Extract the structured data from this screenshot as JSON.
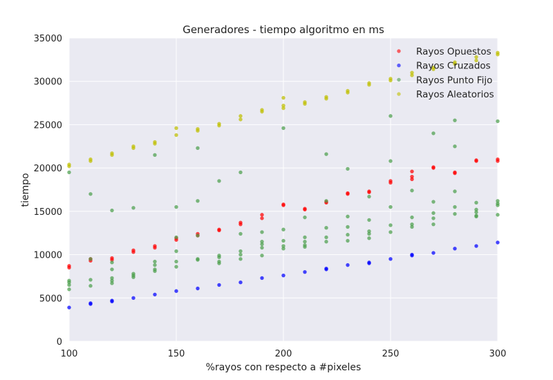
{
  "chart_data": {
    "type": "scatter",
    "title": "Generadores - tiempo algoritmo en ms",
    "xlabel": "%rayos con respecto a #pixeles",
    "ylabel": "tiempo",
    "xlim": [
      100,
      300
    ],
    "ylim": [
      0,
      35000
    ],
    "xticks": [
      100,
      150,
      200,
      250,
      300
    ],
    "yticks": [
      0,
      5000,
      10000,
      15000,
      20000,
      25000,
      30000,
      35000
    ],
    "grid": true,
    "legend_position": "top-right",
    "series": [
      {
        "name": "Rayos Opuestos",
        "color": "#ff0000",
        "points": [
          [
            100,
            8500
          ],
          [
            100,
            8700
          ],
          [
            110,
            9300
          ],
          [
            110,
            9500
          ],
          [
            120,
            9400
          ],
          [
            120,
            9600
          ],
          [
            130,
            10300
          ],
          [
            130,
            10500
          ],
          [
            140,
            10800
          ],
          [
            140,
            11000
          ],
          [
            150,
            11700
          ],
          [
            150,
            11900
          ],
          [
            160,
            12200
          ],
          [
            160,
            12400
          ],
          [
            170,
            12800
          ],
          [
            170,
            12900
          ],
          [
            180,
            13500
          ],
          [
            180,
            13700
          ],
          [
            190,
            14200
          ],
          [
            190,
            14600
          ],
          [
            200,
            15700
          ],
          [
            200,
            15800
          ],
          [
            210,
            15200
          ],
          [
            210,
            15300
          ],
          [
            220,
            16000
          ],
          [
            220,
            16100
          ],
          [
            230,
            17000
          ],
          [
            230,
            17100
          ],
          [
            240,
            17200
          ],
          [
            240,
            17300
          ],
          [
            250,
            18300
          ],
          [
            250,
            18500
          ],
          [
            260,
            18700
          ],
          [
            260,
            19000
          ],
          [
            260,
            19600
          ],
          [
            270,
            20000
          ],
          [
            270,
            20100
          ],
          [
            280,
            19400
          ],
          [
            280,
            19500
          ],
          [
            290,
            20800
          ],
          [
            290,
            20900
          ],
          [
            300,
            20800
          ],
          [
            300,
            21000
          ]
        ]
      },
      {
        "name": "Rayos Cruzados",
        "color": "#0000ff",
        "points": [
          [
            100,
            3900
          ],
          [
            110,
            4300
          ],
          [
            110,
            4400
          ],
          [
            120,
            4600
          ],
          [
            120,
            4700
          ],
          [
            130,
            5000
          ],
          [
            140,
            5400
          ],
          [
            150,
            5800
          ],
          [
            160,
            6100
          ],
          [
            170,
            6500
          ],
          [
            180,
            6800
          ],
          [
            190,
            7300
          ],
          [
            200,
            7600
          ],
          [
            210,
            8000
          ],
          [
            220,
            8300
          ],
          [
            220,
            8400
          ],
          [
            230,
            8800
          ],
          [
            240,
            9000
          ],
          [
            240,
            9100
          ],
          [
            250,
            9500
          ],
          [
            260,
            9900
          ],
          [
            260,
            10000
          ],
          [
            270,
            10200
          ],
          [
            280,
            10700
          ],
          [
            290,
            11000
          ],
          [
            300,
            11400
          ]
        ]
      },
      {
        "name": "Rayos Punto Fijo",
        "color": "#4c9f4c",
        "points": [
          [
            100,
            19500
          ],
          [
            100,
            6800
          ],
          [
            100,
            6500
          ],
          [
            100,
            7000
          ],
          [
            100,
            6000
          ],
          [
            110,
            17000
          ],
          [
            110,
            9500
          ],
          [
            110,
            7100
          ],
          [
            110,
            6400
          ],
          [
            120,
            15100
          ],
          [
            120,
            9100
          ],
          [
            120,
            8300
          ],
          [
            120,
            7300
          ],
          [
            120,
            7000
          ],
          [
            120,
            6700
          ],
          [
            130,
            15400
          ],
          [
            130,
            7800
          ],
          [
            130,
            7600
          ],
          [
            130,
            7400
          ],
          [
            140,
            21500
          ],
          [
            140,
            9200
          ],
          [
            140,
            8800
          ],
          [
            140,
            8300
          ],
          [
            140,
            8100
          ],
          [
            150,
            15500
          ],
          [
            150,
            12000
          ],
          [
            150,
            10400
          ],
          [
            150,
            9200
          ],
          [
            150,
            8600
          ],
          [
            160,
            22300
          ],
          [
            160,
            16200
          ],
          [
            160,
            12200
          ],
          [
            160,
            9500
          ],
          [
            160,
            9400
          ],
          [
            170,
            18500
          ],
          [
            170,
            9900
          ],
          [
            170,
            9700
          ],
          [
            170,
            9200
          ],
          [
            170,
            9000
          ],
          [
            180,
            19500
          ],
          [
            180,
            12400
          ],
          [
            180,
            10400
          ],
          [
            180,
            10000
          ],
          [
            180,
            9500
          ],
          [
            190,
            12600
          ],
          [
            190,
            11500
          ],
          [
            190,
            11200
          ],
          [
            190,
            10800
          ],
          [
            190,
            9900
          ],
          [
            200,
            24600
          ],
          [
            200,
            12900
          ],
          [
            200,
            11600
          ],
          [
            200,
            11000
          ],
          [
            200,
            10700
          ],
          [
            210,
            14300
          ],
          [
            210,
            12000
          ],
          [
            210,
            11500
          ],
          [
            210,
            11100
          ],
          [
            210,
            10900
          ],
          [
            220,
            21600
          ],
          [
            220,
            16200
          ],
          [
            220,
            13100
          ],
          [
            220,
            12000
          ],
          [
            220,
            11500
          ],
          [
            230,
            19900
          ],
          [
            230,
            14400
          ],
          [
            230,
            13200
          ],
          [
            230,
            12300
          ],
          [
            230,
            11600
          ],
          [
            240,
            16700
          ],
          [
            240,
            14000
          ],
          [
            240,
            12700
          ],
          [
            240,
            12400
          ],
          [
            240,
            11900
          ],
          [
            250,
            26000
          ],
          [
            250,
            20800
          ],
          [
            250,
            15500
          ],
          [
            250,
            13400
          ],
          [
            250,
            12600
          ],
          [
            260,
            17400
          ],
          [
            260,
            14300
          ],
          [
            260,
            13500
          ],
          [
            260,
            13200
          ],
          [
            270,
            24000
          ],
          [
            270,
            16100
          ],
          [
            270,
            14800
          ],
          [
            270,
            14200
          ],
          [
            270,
            13500
          ],
          [
            280,
            25500
          ],
          [
            280,
            22500
          ],
          [
            280,
            17300
          ],
          [
            280,
            15500
          ],
          [
            280,
            14700
          ],
          [
            290,
            16000
          ],
          [
            290,
            15200
          ],
          [
            290,
            14900
          ],
          [
            290,
            14500
          ],
          [
            290,
            14400
          ],
          [
            300,
            25400
          ],
          [
            300,
            16200
          ],
          [
            300,
            15900
          ],
          [
            300,
            15700
          ],
          [
            300,
            14600
          ]
        ]
      },
      {
        "name": "Rayos Aleatorios",
        "color": "#bfbf00",
        "points": [
          [
            100,
            20200
          ],
          [
            100,
            20400
          ],
          [
            110,
            20800
          ],
          [
            110,
            21000
          ],
          [
            120,
            21500
          ],
          [
            120,
            21700
          ],
          [
            130,
            22300
          ],
          [
            130,
            22500
          ],
          [
            140,
            22800
          ],
          [
            140,
            23000
          ],
          [
            150,
            23800
          ],
          [
            150,
            24600
          ],
          [
            160,
            24300
          ],
          [
            160,
            24500
          ],
          [
            170,
            24900
          ],
          [
            170,
            25100
          ],
          [
            180,
            25600
          ],
          [
            180,
            26000
          ],
          [
            190,
            26500
          ],
          [
            190,
            26700
          ],
          [
            200,
            26900
          ],
          [
            200,
            27200
          ],
          [
            200,
            28100
          ],
          [
            210,
            27400
          ],
          [
            210,
            27600
          ],
          [
            220,
            28000
          ],
          [
            220,
            28200
          ],
          [
            230,
            28700
          ],
          [
            230,
            28900
          ],
          [
            240,
            29600
          ],
          [
            240,
            29800
          ],
          [
            250,
            30100
          ],
          [
            250,
            30300
          ],
          [
            260,
            30700
          ],
          [
            260,
            31000
          ],
          [
            270,
            31400
          ],
          [
            270,
            31600
          ],
          [
            280,
            32000
          ],
          [
            280,
            32200
          ],
          [
            290,
            32400
          ],
          [
            290,
            32800
          ],
          [
            300,
            33100
          ],
          [
            300,
            33300
          ]
        ]
      }
    ]
  }
}
